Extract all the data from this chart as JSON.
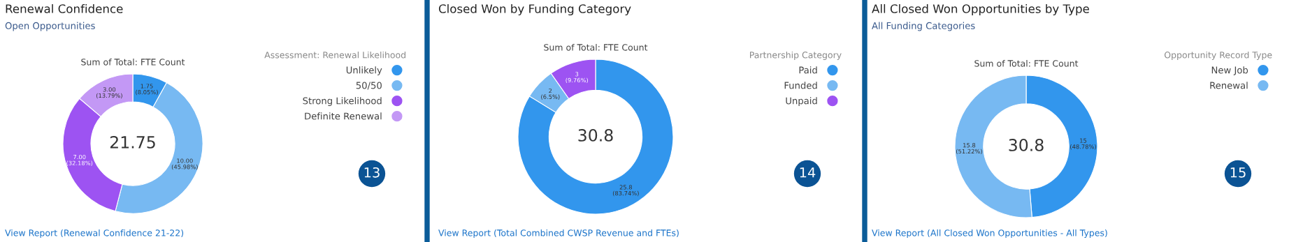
{
  "chart_data": [
    {
      "type": "donut",
      "title": "Renewal Confidence",
      "subtitle": "Open Opportunities",
      "legend_title": "Assessment: Renewal Likelihood",
      "legend": "top right",
      "categories": [
        "Unlikely",
        "50/50",
        "Strong Likelihood",
        "Definite Renewal"
      ],
      "values": [
        1.75,
        10.0,
        7.0,
        3.0
      ],
      "colors": [
        "#3296ed",
        "#77b9f2",
        "#9d53f2",
        "#c398f5"
      ],
      "value_labels": [
        "1.75\n(8.05%)",
        "10.00\n(45.98%)",
        "7.00\n(32.18%)",
        "3.00\n(13.79%)"
      ],
      "annotations": [
        "Sum of Total: FTE Count",
        "21.75",
        "13",
        "View Report (Renewal Confidence 21-22)"
      ]
    },
    {
      "type": "donut",
      "title": "Closed Won by Funding Category",
      "legend_title": "Partnership Category",
      "legend": "top right",
      "categories": [
        "Paid",
        "Funded",
        "Unpaid"
      ],
      "values": [
        25.8,
        2,
        3
      ],
      "colors": [
        "#3296ed",
        "#77b9f2",
        "#9d53f2"
      ],
      "value_labels": [
        "25.8\n(83.74%)",
        "2\n(6.5%)",
        "3\n(9.76%)"
      ],
      "annotations": [
        "Sum of Total: FTE Count",
        "30.8",
        "14",
        "View Report (Total Combined CWSP Revenue and FTEs)"
      ]
    },
    {
      "type": "donut",
      "title": "All Closed Won Opportunities by Type",
      "subtitle": "All Funding Categories",
      "legend_title": "Opportunity Record Type",
      "legend": "top right",
      "categories": [
        "New Job",
        "Renewal"
      ],
      "values": [
        15,
        15.8
      ],
      "colors": [
        "#3296ed",
        "#77b9f2"
      ],
      "value_labels": [
        "15\n(48.78%)",
        "15.8\n(51.22%)"
      ],
      "annotations": [
        "Sum of Total: FTE Count",
        "30.8",
        "15",
        "View Report (All Closed Won Opportunities - All Types)"
      ]
    }
  ]
}
